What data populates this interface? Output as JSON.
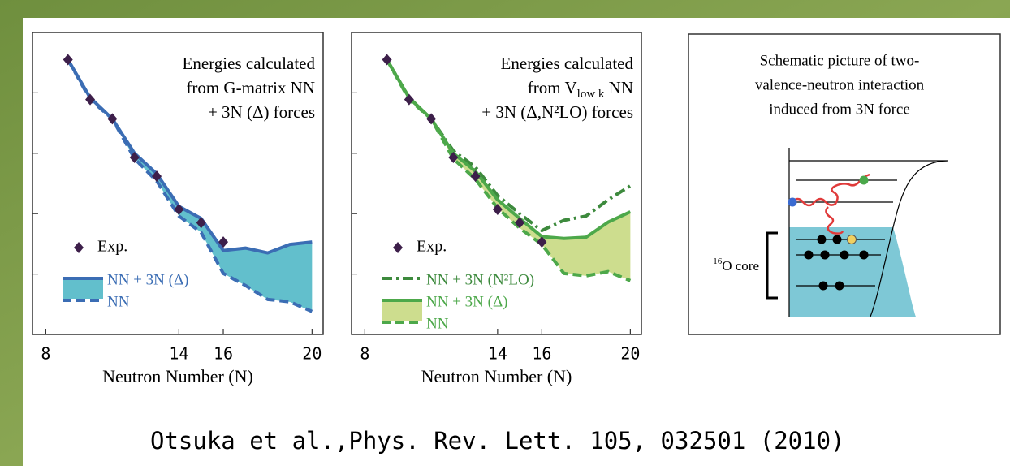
{
  "chart_data": [
    {
      "type": "line",
      "annotation": [
        "Energies calculated",
        "from G-matrix NN",
        "+ 3N (Δ) forces"
      ],
      "xlabel": "Neutron Number (N)",
      "x": [
        9,
        10,
        11,
        12,
        13,
        14,
        15,
        16,
        17,
        18,
        19,
        20
      ],
      "xlim": [
        7.4,
        20.5
      ],
      "xticks": [
        8,
        14,
        16,
        20
      ],
      "ylim": [
        0,
        5
      ],
      "yticks": [
        1,
        2,
        3,
        4
      ],
      "series": [
        {
          "name": "Exp.",
          "color": "#3d1f4a",
          "style": "marker",
          "values": [
            4.55,
            3.89,
            3.57,
            2.93,
            2.62,
            2.07,
            1.85,
            1.53,
            null,
            null,
            null,
            null
          ]
        },
        {
          "name": "NN + 3N (Δ)",
          "color": "#3b6db4",
          "style": "solid",
          "fill": "#62bfcc",
          "values": [
            4.55,
            3.92,
            3.57,
            3.0,
            2.66,
            2.12,
            1.92,
            1.39,
            1.43,
            1.35,
            1.49,
            1.53
          ]
        },
        {
          "name": "NN",
          "color": "#3b6db4",
          "style": "dashed",
          "values": [
            4.55,
            3.89,
            3.57,
            2.91,
            2.54,
            1.96,
            1.69,
            1.01,
            0.81,
            0.58,
            0.54,
            0.38
          ]
        }
      ]
    },
    {
      "type": "line",
      "annotation": [
        "Energies calculated",
        {
          "text": "from  V",
          "sub": "low k",
          "tail": " NN"
        },
        "+ 3N (Δ,N²LO) forces"
      ],
      "xlabel": "Neutron Number (N)",
      "x": [
        9,
        10,
        11,
        12,
        13,
        14,
        15,
        16,
        17,
        18,
        19,
        20
      ],
      "xlim": [
        7.4,
        20.5
      ],
      "xticks": [
        8,
        14,
        16,
        20
      ],
      "ylim": [
        0,
        5
      ],
      "yticks": [
        1,
        2,
        3,
        4
      ],
      "series": [
        {
          "name": "Exp.",
          "color": "#3d1f4a",
          "style": "marker",
          "values": [
            4.55,
            3.89,
            3.57,
            2.93,
            2.62,
            2.07,
            1.85,
            1.53,
            null,
            null,
            null,
            null
          ]
        },
        {
          "name": "NN + 3N (N²LO)",
          "color": "#3d8a3d",
          "style": "dashdot",
          "values": [
            4.55,
            3.92,
            3.57,
            3.04,
            2.77,
            2.3,
            2.0,
            1.72,
            1.89,
            1.96,
            2.23,
            2.46
          ]
        },
        {
          "name": "NN + 3N (Δ)",
          "color": "#4da84a",
          "style": "solid",
          "fill": "#cddd8e",
          "values": [
            4.55,
            3.92,
            3.57,
            3.0,
            2.7,
            2.23,
            1.92,
            1.62,
            1.59,
            1.61,
            1.86,
            2.03
          ]
        },
        {
          "name": "NN",
          "color": "#4da84a",
          "style": "dashed",
          "values": [
            4.55,
            3.89,
            3.57,
            2.91,
            2.57,
            2.09,
            1.76,
            1.49,
            1.01,
            0.97,
            1.04,
            0.89
          ]
        }
      ]
    }
  ],
  "schematic": {
    "caption": [
      "Schematic picture of two-",
      "valence-neutron interaction",
      "induced from 3N force"
    ],
    "core_label": {
      "sup": "16",
      "text": "O core"
    }
  },
  "citation": "Otsuka et al.,Phys. Rev. Lett. 105, 032501 (2010)"
}
